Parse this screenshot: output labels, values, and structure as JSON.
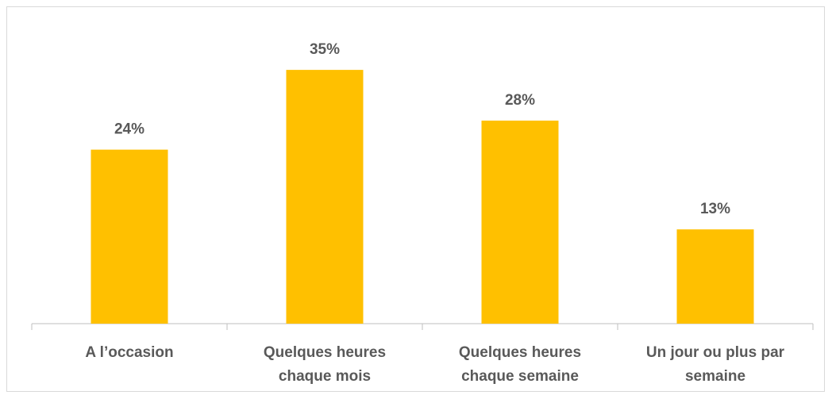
{
  "chart_data": {
    "type": "bar",
    "categories": [
      "A l’occasion",
      "Quelques heures chaque mois",
      "Quelques heures chaque semaine",
      "Un jour ou plus par semaine"
    ],
    "values": [
      24,
      35,
      28,
      13
    ],
    "value_labels": [
      "24%",
      "35%",
      "28%",
      "13%"
    ],
    "color": "#ffc000"
  }
}
